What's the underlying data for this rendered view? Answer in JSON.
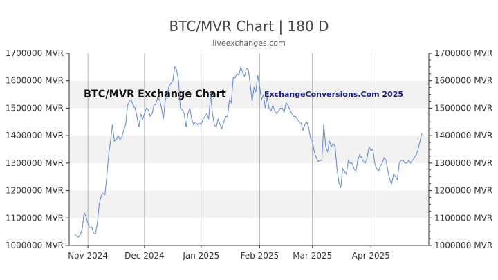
{
  "header": {
    "title": "BTC/MVR Chart | 180 D",
    "subtitle": "liveexchanges.com"
  },
  "watermark": {
    "left": "BTC/MVR Exchange Chart",
    "right": "ExchangeConversions.Com 2025"
  },
  "colors": {
    "line": "#6a8fd6",
    "band": "#f2f2f2",
    "grid": "#888888",
    "axis": "#333333"
  },
  "chart_data": {
    "type": "line",
    "title": "BTC/MVR Chart | 180 D",
    "ylim": [
      1000000,
      1700000
    ],
    "yticks": [
      1000000,
      1100000,
      1200000,
      1300000,
      1400000,
      1500000,
      1600000,
      1700000
    ],
    "ytick_labels": [
      "1000000 MVR",
      "1100000 MVR",
      "1200000 MVR",
      "1300000 MVR",
      "1400000 MVR",
      "1500000 MVR",
      "1600000 MVR",
      "1700000 MVR"
    ],
    "x_tick_labels": [
      "Nov 2024",
      "Dec 2024",
      "Jan 2025",
      "Feb 2025",
      "Mar 2025",
      "Apr 2025"
    ],
    "x_tick_index": [
      7,
      37,
      67,
      98,
      126,
      157
    ],
    "grid": true,
    "series": [
      {
        "values": [
          1040000,
          1035000,
          1030000,
          1040000,
          1060000,
          1120000,
          1105000,
          1080000,
          1065000,
          1068000,
          1045000,
          1042000,
          1080000,
          1150000,
          1180000,
          1190000,
          1185000,
          1250000,
          1330000,
          1380000,
          1440000,
          1380000,
          1385000,
          1400000,
          1385000,
          1395000,
          1420000,
          1440000,
          1510000,
          1525000,
          1530000,
          1510000,
          1500000,
          1470000,
          1430000,
          1480000,
          1460000,
          1480000,
          1500000,
          1495000,
          1470000,
          1480000,
          1510000,
          1515000,
          1540000,
          1530000,
          1500000,
          1460000,
          1530000,
          1550000,
          1580000,
          1590000,
          1600000,
          1650000,
          1640000,
          1600000,
          1500000,
          1495000,
          1480000,
          1430000,
          1480000,
          1500000,
          1460000,
          1440000,
          1450000,
          1440000,
          1445000,
          1440000,
          1460000,
          1470000,
          1480000,
          1460000,
          1550000,
          1480000,
          1440000,
          1430000,
          1460000,
          1440000,
          1425000,
          1450000,
          1470000,
          1470000,
          1530000,
          1520000,
          1610000,
          1610000,
          1625000,
          1620000,
          1650000,
          1630000,
          1615000,
          1645000,
          1640000,
          1590000,
          1525000,
          1575000,
          1560000,
          1620000,
          1580000,
          1530000,
          1550000,
          1500000,
          1540000,
          1500000,
          1490000,
          1510000,
          1490000,
          1480000,
          1490000,
          1500000,
          1500000,
          1485000,
          1520000,
          1510000,
          1495000,
          1480000,
          1470000,
          1470000,
          1460000,
          1450000,
          1445000,
          1420000,
          1440000,
          1450000,
          1430000,
          1390000,
          1380000,
          1340000,
          1320000,
          1305000,
          1310000,
          1310000,
          1440000,
          1360000,
          1340000,
          1380000,
          1360000,
          1370000,
          1360000,
          1280000,
          1230000,
          1210000,
          1280000,
          1270000,
          1260000,
          1310000,
          1300000,
          1300000,
          1280000,
          1270000,
          1310000,
          1330000,
          1320000,
          1305000,
          1300000,
          1320000,
          1360000,
          1345000,
          1350000,
          1300000,
          1280000,
          1270000,
          1290000,
          1300000,
          1320000,
          1310000,
          1270000,
          1240000,
          1225000,
          1260000,
          1250000,
          1240000,
          1300000,
          1310000,
          1310000,
          1300000,
          1300000,
          1310000,
          1300000,
          1310000,
          1320000,
          1330000,
          1350000,
          1380000,
          1410000
        ]
      }
    ]
  }
}
